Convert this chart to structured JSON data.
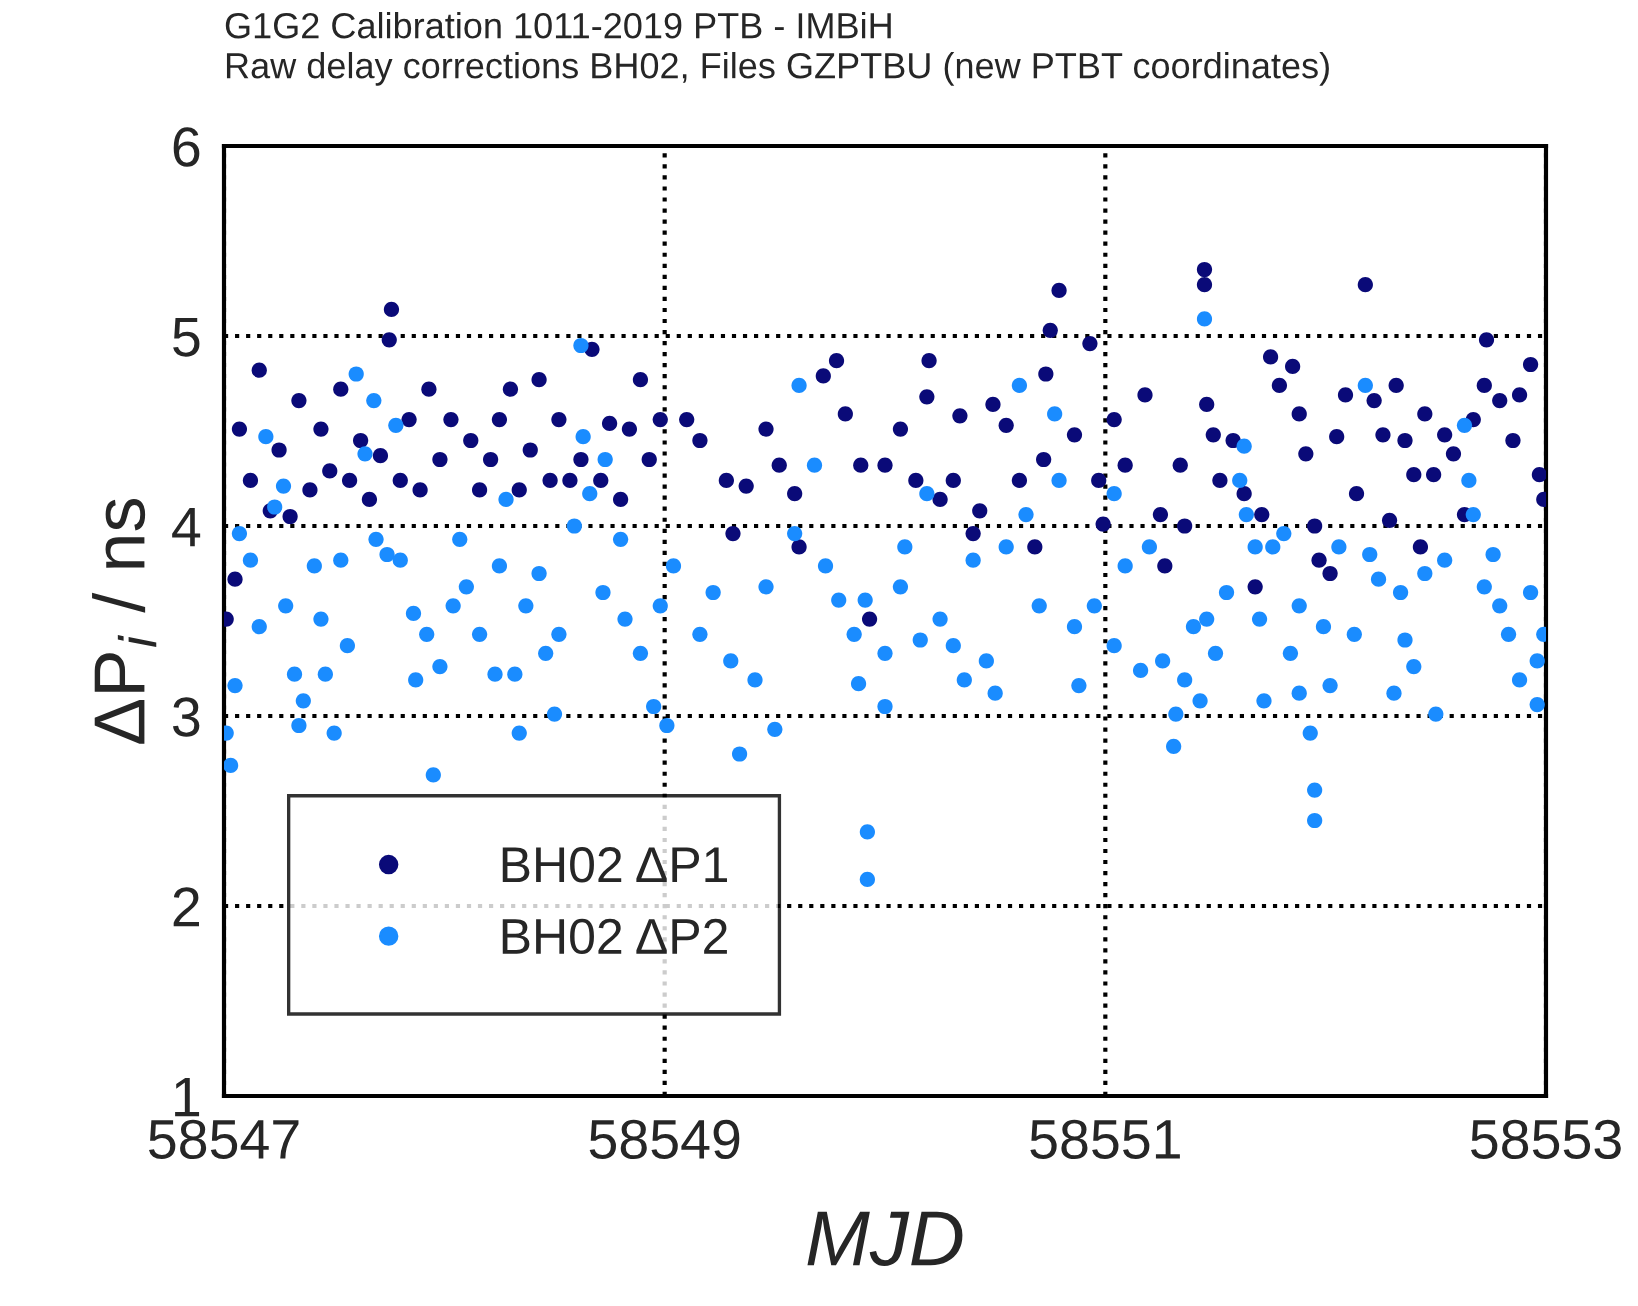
{
  "chart_data": {
    "type": "scatter",
    "title": "G1G2 Calibration 1011-2019 PTB - IMBiH",
    "subtitle": "Raw delay corrections BH02, Files GZPTBU (new PTBT coordinates)",
    "xlabel": "MJD",
    "ylabel": "ΔP$_{i}$ / ns",
    "xlim": [
      58547,
      58553
    ],
    "xticks": [
      58547,
      58549,
      58551,
      58553
    ],
    "ylim": [
      1,
      6
    ],
    "yticks": [
      1,
      2,
      3,
      4,
      5,
      6
    ],
    "grid": true,
    "legend": "bottom left",
    "marker": "circle",
    "series": [
      {
        "name": "BH02 ΔP1",
        "color": "#0a0a78",
        "x": [
          58547.01,
          58547.05,
          58547.07,
          58547.12,
          58547.16,
          58547.21,
          58547.25,
          58547.3,
          58547.34,
          58547.39,
          58547.44,
          58547.48,
          58547.53,
          58547.57,
          58547.62,
          58547.66,
          58547.71,
          58547.75,
          58547.76,
          58547.8,
          58547.84,
          58547.89,
          58547.93,
          58547.98,
          58548.03,
          58548.12,
          58548.16,
          58548.21,
          58548.25,
          58548.3,
          58548.34,
          58548.39,
          58548.43,
          58548.48,
          58548.52,
          58548.57,
          58548.62,
          58548.67,
          58548.71,
          58548.75,
          58548.8,
          58548.84,
          58548.89,
          58548.93,
          58548.98,
          58549.1,
          58549.16,
          58549.28,
          58549.31,
          58549.37,
          58549.46,
          58549.52,
          58549.59,
          58549.61,
          58549.72,
          58549.78,
          58549.82,
          58549.89,
          58549.93,
          58550.0,
          58550.07,
          58550.14,
          58550.19,
          58550.2,
          58550.25,
          58550.31,
          58550.34,
          58550.4,
          58550.43,
          58550.49,
          58550.55,
          58550.61,
          58550.68,
          58550.72,
          58550.73,
          58550.75,
          58550.79,
          58550.86,
          58550.93,
          58550.97,
          58550.99,
          58551.04,
          58551.09,
          58551.18,
          58551.25,
          58551.27,
          58551.34,
          58551.36,
          58551.45,
          58551.45,
          58551.46,
          58551.49,
          58551.52,
          58551.58,
          58551.63,
          58551.68,
          58551.71,
          58551.75,
          58551.79,
          58551.85,
          58551.88,
          58551.91,
          58551.95,
          58551.97,
          58552.02,
          58552.05,
          58552.09,
          58552.14,
          58552.18,
          58552.22,
          58552.26,
          58552.29,
          58552.32,
          58552.36,
          58552.4,
          58552.43,
          58552.45,
          58552.49,
          58552.54,
          58552.58,
          58552.63,
          58552.67,
          58552.72,
          58552.73,
          58552.79,
          58552.85,
          58552.88,
          58552.93,
          58552.97,
          58552.99
        ],
        "values": [
          3.51,
          3.72,
          4.51,
          4.24,
          4.82,
          4.08,
          4.4,
          4.05,
          4.66,
          4.19,
          4.51,
          4.29,
          4.72,
          4.24,
          4.45,
          4.14,
          4.37,
          4.98,
          5.14,
          4.24,
          4.56,
          4.19,
          4.72,
          4.35,
          4.56,
          4.45,
          4.19,
          4.35,
          4.56,
          4.72,
          4.19,
          4.4,
          4.77,
          4.24,
          4.56,
          4.24,
          4.35,
          4.93,
          4.24,
          4.54,
          4.14,
          4.51,
          4.77,
          4.35,
          4.56,
          4.56,
          4.45,
          4.24,
          3.96,
          4.21,
          4.51,
          4.32,
          4.17,
          3.89,
          4.79,
          4.87,
          4.59,
          4.32,
          3.51,
          4.32,
          4.51,
          4.24,
          4.68,
          4.87,
          4.14,
          4.24,
          4.58,
          3.96,
          4.08,
          4.64,
          4.53,
          4.24,
          3.89,
          4.35,
          4.8,
          5.03,
          5.24,
          4.48,
          4.96,
          4.24,
          4.01,
          4.56,
          4.32,
          4.69,
          4.06,
          3.79,
          4.32,
          4.0,
          5.35,
          5.27,
          4.64,
          4.48,
          4.24,
          4.45,
          4.17,
          3.68,
          4.06,
          4.89,
          4.74,
          4.84,
          4.59,
          4.38,
          4.0,
          3.82,
          3.75,
          4.47,
          4.69,
          4.17,
          5.27,
          4.66,
          4.48,
          4.03,
          4.74,
          4.45,
          4.27,
          3.89,
          4.59,
          4.27,
          4.48,
          4.38,
          4.06,
          4.56,
          4.74,
          4.98,
          4.66,
          4.45,
          4.69,
          4.85,
          4.27,
          4.14
        ]
      },
      {
        "name": "BH02 ΔP2",
        "color": "#1a8cff",
        "x": [
          58547.01,
          58547.03,
          58547.07,
          58547.05,
          58547.12,
          58547.16,
          58547.19,
          58547.23,
          58547.27,
          58547.28,
          58547.32,
          58547.34,
          58547.36,
          58547.41,
          58547.44,
          58547.46,
          58547.5,
          58547.53,
          58547.56,
          58547.6,
          58547.64,
          58547.68,
          58547.69,
          58547.74,
          58547.78,
          58547.8,
          58547.86,
          58547.87,
          58547.92,
          58547.95,
          58547.98,
          58548.04,
          58548.07,
          58548.1,
          58548.16,
          58548.23,
          58548.25,
          58548.28,
          58548.32,
          58548.34,
          58548.37,
          58548.43,
          58548.46,
          58548.5,
          58548.52,
          58548.59,
          58548.62,
          58548.63,
          58548.66,
          58548.72,
          58548.73,
          58548.8,
          58548.82,
          58548.89,
          58548.95,
          58548.98,
          58549.01,
          58549.04,
          58549.16,
          58549.22,
          58549.3,
          58549.34,
          58549.41,
          58549.46,
          58549.5,
          58549.59,
          58549.61,
          58549.68,
          58549.73,
          58549.79,
          58549.86,
          58549.88,
          58549.91,
          58549.92,
          58549.92,
          58550.0,
          58550.0,
          58550.07,
          58550.09,
          58550.16,
          58550.19,
          58550.25,
          58550.31,
          58550.36,
          58550.4,
          58550.46,
          58550.5,
          58550.55,
          58550.61,
          58550.64,
          58550.7,
          58550.77,
          58550.79,
          58550.86,
          58550.88,
          58550.95,
          58551.04,
          58551.04,
          58551.09,
          58551.16,
          58551.2,
          58551.26,
          58551.31,
          58551.32,
          58551.36,
          58551.4,
          58551.43,
          58551.45,
          58551.46,
          58551.5,
          58551.55,
          58551.61,
          58551.63,
          58551.64,
          58551.68,
          58551.7,
          58551.72,
          58551.76,
          58551.81,
          58551.84,
          58551.88,
          58551.88,
          58551.93,
          58551.95,
          58551.95,
          58551.99,
          58552.02,
          58552.06,
          58552.13,
          58552.18,
          58552.2,
          58552.24,
          58552.31,
          58552.34,
          58552.36,
          58552.4,
          58552.45,
          58552.5,
          58552.54,
          58552.63,
          58552.65,
          58552.67,
          58552.72,
          58552.76,
          58552.79,
          58552.83,
          58552.88,
          58552.93,
          58552.96,
          58552.96,
          58552.99
        ],
        "values": [
          2.91,
          2.74,
          3.96,
          3.16,
          3.82,
          3.47,
          4.47,
          4.1,
          4.21,
          3.58,
          3.22,
          2.95,
          3.08,
          3.79,
          3.51,
          3.22,
          2.91,
          3.82,
          3.37,
          4.8,
          4.38,
          4.66,
          3.93,
          3.85,
          4.53,
          3.82,
          3.54,
          3.19,
          3.43,
          2.69,
          3.26,
          3.58,
          3.93,
          3.68,
          3.43,
          3.22,
          3.79,
          4.14,
          3.22,
          2.91,
          3.58,
          3.75,
          3.33,
          3.01,
          3.43,
          4.0,
          4.95,
          4.47,
          4.17,
          3.65,
          4.35,
          3.93,
          3.51,
          3.33,
          3.05,
          3.58,
          2.95,
          3.79,
          3.43,
          3.65,
          3.29,
          2.8,
          3.19,
          3.68,
          2.93,
          3.96,
          4.74,
          4.32,
          3.79,
          3.61,
          3.43,
          3.17,
          3.61,
          2.39,
          2.14,
          3.33,
          3.05,
          3.68,
          3.89,
          3.4,
          4.17,
          3.51,
          3.37,
          3.19,
          3.82,
          3.29,
          3.12,
          3.89,
          4.74,
          4.06,
          3.58,
          4.59,
          4.24,
          3.47,
          3.16,
          3.58,
          3.37,
          4.17,
          3.79,
          3.24,
          3.89,
          3.29,
          2.84,
          3.01,
          3.19,
          3.47,
          3.08,
          5.09,
          3.51,
          3.33,
          3.65,
          4.24,
          4.42,
          4.06,
          3.89,
          3.51,
          3.08,
          3.89,
          3.96,
          3.33,
          3.58,
          3.12,
          2.91,
          2.61,
          2.45,
          3.47,
          3.16,
          3.89,
          3.43,
          4.74,
          3.85,
          3.72,
          3.12,
          3.65,
          3.4,
          3.26,
          3.75,
          3.01,
          3.82,
          4.53,
          4.24,
          4.06,
          3.68,
          3.85,
          3.58,
          3.43,
          3.19,
          3.65,
          3.29,
          3.06,
          3.43
        ]
      }
    ]
  }
}
